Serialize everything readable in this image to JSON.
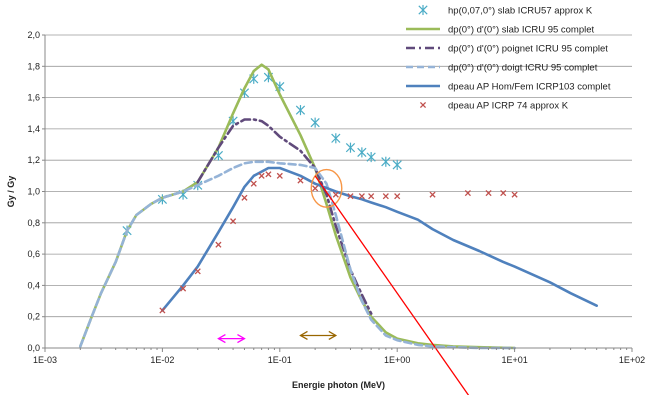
{
  "chart_data": {
    "type": "line",
    "xlabel": "Energie photon (MeV)",
    "ylabel": "Gy / Gy",
    "x_scale": "log",
    "xlim": [
      0.001,
      100
    ],
    "ylim": [
      0.0,
      2.0
    ],
    "grid": "horizontal",
    "legend_position": "top-right",
    "x_tick_labels": [
      "1E-03",
      "1E-02",
      "1E-01",
      "1E+00",
      "1E+01",
      "1E+02"
    ],
    "y_tick_labels": [
      "0,0",
      "0,2",
      "0,4",
      "0,6",
      "0,8",
      "1,0",
      "1,2",
      "1,4",
      "1,6",
      "1,8",
      "2,0"
    ],
    "series": [
      {
        "name": "hp(0,07,0°) slab ICRU57 approx K",
        "kind": "markers",
        "marker": "asterisk",
        "color": "#4bacc6",
        "x": [
          0.005,
          0.01,
          0.015,
          0.02,
          0.03,
          0.04,
          0.05,
          0.06,
          0.08,
          0.1,
          0.15,
          0.2,
          0.3,
          0.4,
          0.5,
          0.6,
          0.8,
          1.0
        ],
        "y": [
          0.75,
          0.95,
          0.98,
          1.04,
          1.23,
          1.45,
          1.63,
          1.72,
          1.73,
          1.67,
          1.52,
          1.44,
          1.34,
          1.28,
          1.25,
          1.22,
          1.19,
          1.17
        ]
      },
      {
        "name": "dp(0°) d'(0°) slab ICRU 95 complet",
        "kind": "line",
        "dash": "solid",
        "color": "#9bbb59",
        "x": [
          0.002,
          0.0025,
          0.003,
          0.004,
          0.005,
          0.006,
          0.008,
          0.01,
          0.015,
          0.02,
          0.03,
          0.04,
          0.05,
          0.06,
          0.07,
          0.08,
          0.1,
          0.15,
          0.2,
          0.25,
          0.3,
          0.4,
          0.5,
          0.6,
          0.8,
          1.0,
          1.5,
          2.0,
          3.0,
          5.0,
          10.0
        ],
        "y": [
          0.01,
          0.2,
          0.35,
          0.55,
          0.75,
          0.85,
          0.92,
          0.96,
          1.0,
          1.06,
          1.28,
          1.5,
          1.66,
          1.77,
          1.81,
          1.78,
          1.62,
          1.36,
          1.15,
          0.92,
          0.72,
          0.45,
          0.3,
          0.2,
          0.1,
          0.06,
          0.03,
          0.02,
          0.01,
          0.005,
          0.0
        ]
      },
      {
        "name": "dp(0°) d'(0°) poignet ICRU 95 complet",
        "kind": "line",
        "dash": "dashdot",
        "color": "#604a7b",
        "x": [
          0.02,
          0.03,
          0.04,
          0.05,
          0.06,
          0.07,
          0.08,
          0.1,
          0.15,
          0.2,
          0.25,
          0.3,
          0.4,
          0.5,
          0.6
        ],
        "y": [
          1.06,
          1.28,
          1.42,
          1.46,
          1.46,
          1.45,
          1.42,
          1.35,
          1.26,
          1.15,
          0.98,
          0.78,
          0.5,
          0.34,
          0.22
        ]
      },
      {
        "name": "dp(0°) d'(0°) doigt ICRU 95 complet",
        "kind": "line",
        "dash": "dashed",
        "color": "#95b3d7",
        "x": [
          0.002,
          0.0025,
          0.003,
          0.004,
          0.005,
          0.006,
          0.008,
          0.01,
          0.015,
          0.02,
          0.03,
          0.04,
          0.05,
          0.06,
          0.08,
          0.1,
          0.15,
          0.2,
          0.25,
          0.3,
          0.4,
          0.5,
          0.6,
          0.8,
          1.0,
          1.5,
          2.0,
          3.0,
          5.0,
          10.0
        ],
        "y": [
          0.01,
          0.2,
          0.35,
          0.55,
          0.75,
          0.85,
          0.92,
          0.96,
          1.0,
          1.04,
          1.1,
          1.15,
          1.18,
          1.19,
          1.19,
          1.18,
          1.17,
          1.15,
          1.05,
          0.85,
          0.5,
          0.3,
          0.18,
          0.08,
          0.05,
          0.02,
          0.01,
          0.005,
          0.0,
          0.0
        ]
      },
      {
        "name": "dpeau AP Hom/Fem ICRP103 complet",
        "kind": "line",
        "dash": "solid",
        "color": "#4f81bd",
        "x": [
          0.01,
          0.015,
          0.02,
          0.03,
          0.04,
          0.05,
          0.06,
          0.08,
          0.1,
          0.15,
          0.2,
          0.3,
          0.4,
          0.5,
          0.6,
          0.8,
          1.0,
          1.5,
          2.0,
          3.0,
          5.0,
          8.0,
          10.0,
          20.0,
          30.0,
          50.0
        ],
        "y": [
          0.24,
          0.4,
          0.52,
          0.74,
          0.9,
          1.03,
          1.1,
          1.15,
          1.15,
          1.1,
          1.05,
          1.0,
          0.97,
          0.95,
          0.93,
          0.9,
          0.87,
          0.82,
          0.76,
          0.69,
          0.62,
          0.55,
          0.52,
          0.42,
          0.35,
          0.27
        ]
      },
      {
        "name": "dpeau AP ICRP 74 approx K",
        "kind": "markers",
        "marker": "x",
        "color": "#c0504d",
        "x": [
          0.01,
          0.015,
          0.02,
          0.03,
          0.04,
          0.05,
          0.06,
          0.07,
          0.08,
          0.1,
          0.15,
          0.2,
          0.3,
          0.4,
          0.5,
          0.6,
          0.8,
          1.0,
          2.0,
          4.0,
          6.0,
          8.0,
          10.0
        ],
        "y": [
          0.24,
          0.38,
          0.49,
          0.66,
          0.81,
          0.96,
          1.05,
          1.1,
          1.11,
          1.1,
          1.07,
          1.02,
          0.98,
          0.97,
          0.97,
          0.97,
          0.97,
          0.97,
          0.98,
          0.99,
          0.99,
          0.99,
          0.98
        ]
      }
    ],
    "annotations": [
      {
        "kind": "double-arrow",
        "color": "#ff00ff",
        "x": [
          0.03,
          0.05
        ],
        "y": 0.06
      },
      {
        "kind": "double-arrow",
        "color": "#996600",
        "x": [
          0.15,
          0.3
        ],
        "y": 0.08
      },
      {
        "kind": "ellipse",
        "color": "#f79646",
        "cx": 0.25,
        "cy": 1.02,
        "rx_decades": 0.13,
        "ry": 0.12
      },
      {
        "kind": "line",
        "color": "#ff0000",
        "x": [
          0.2,
          5.0
        ],
        "y": [
          1.1,
          -0.4
        ]
      }
    ]
  }
}
